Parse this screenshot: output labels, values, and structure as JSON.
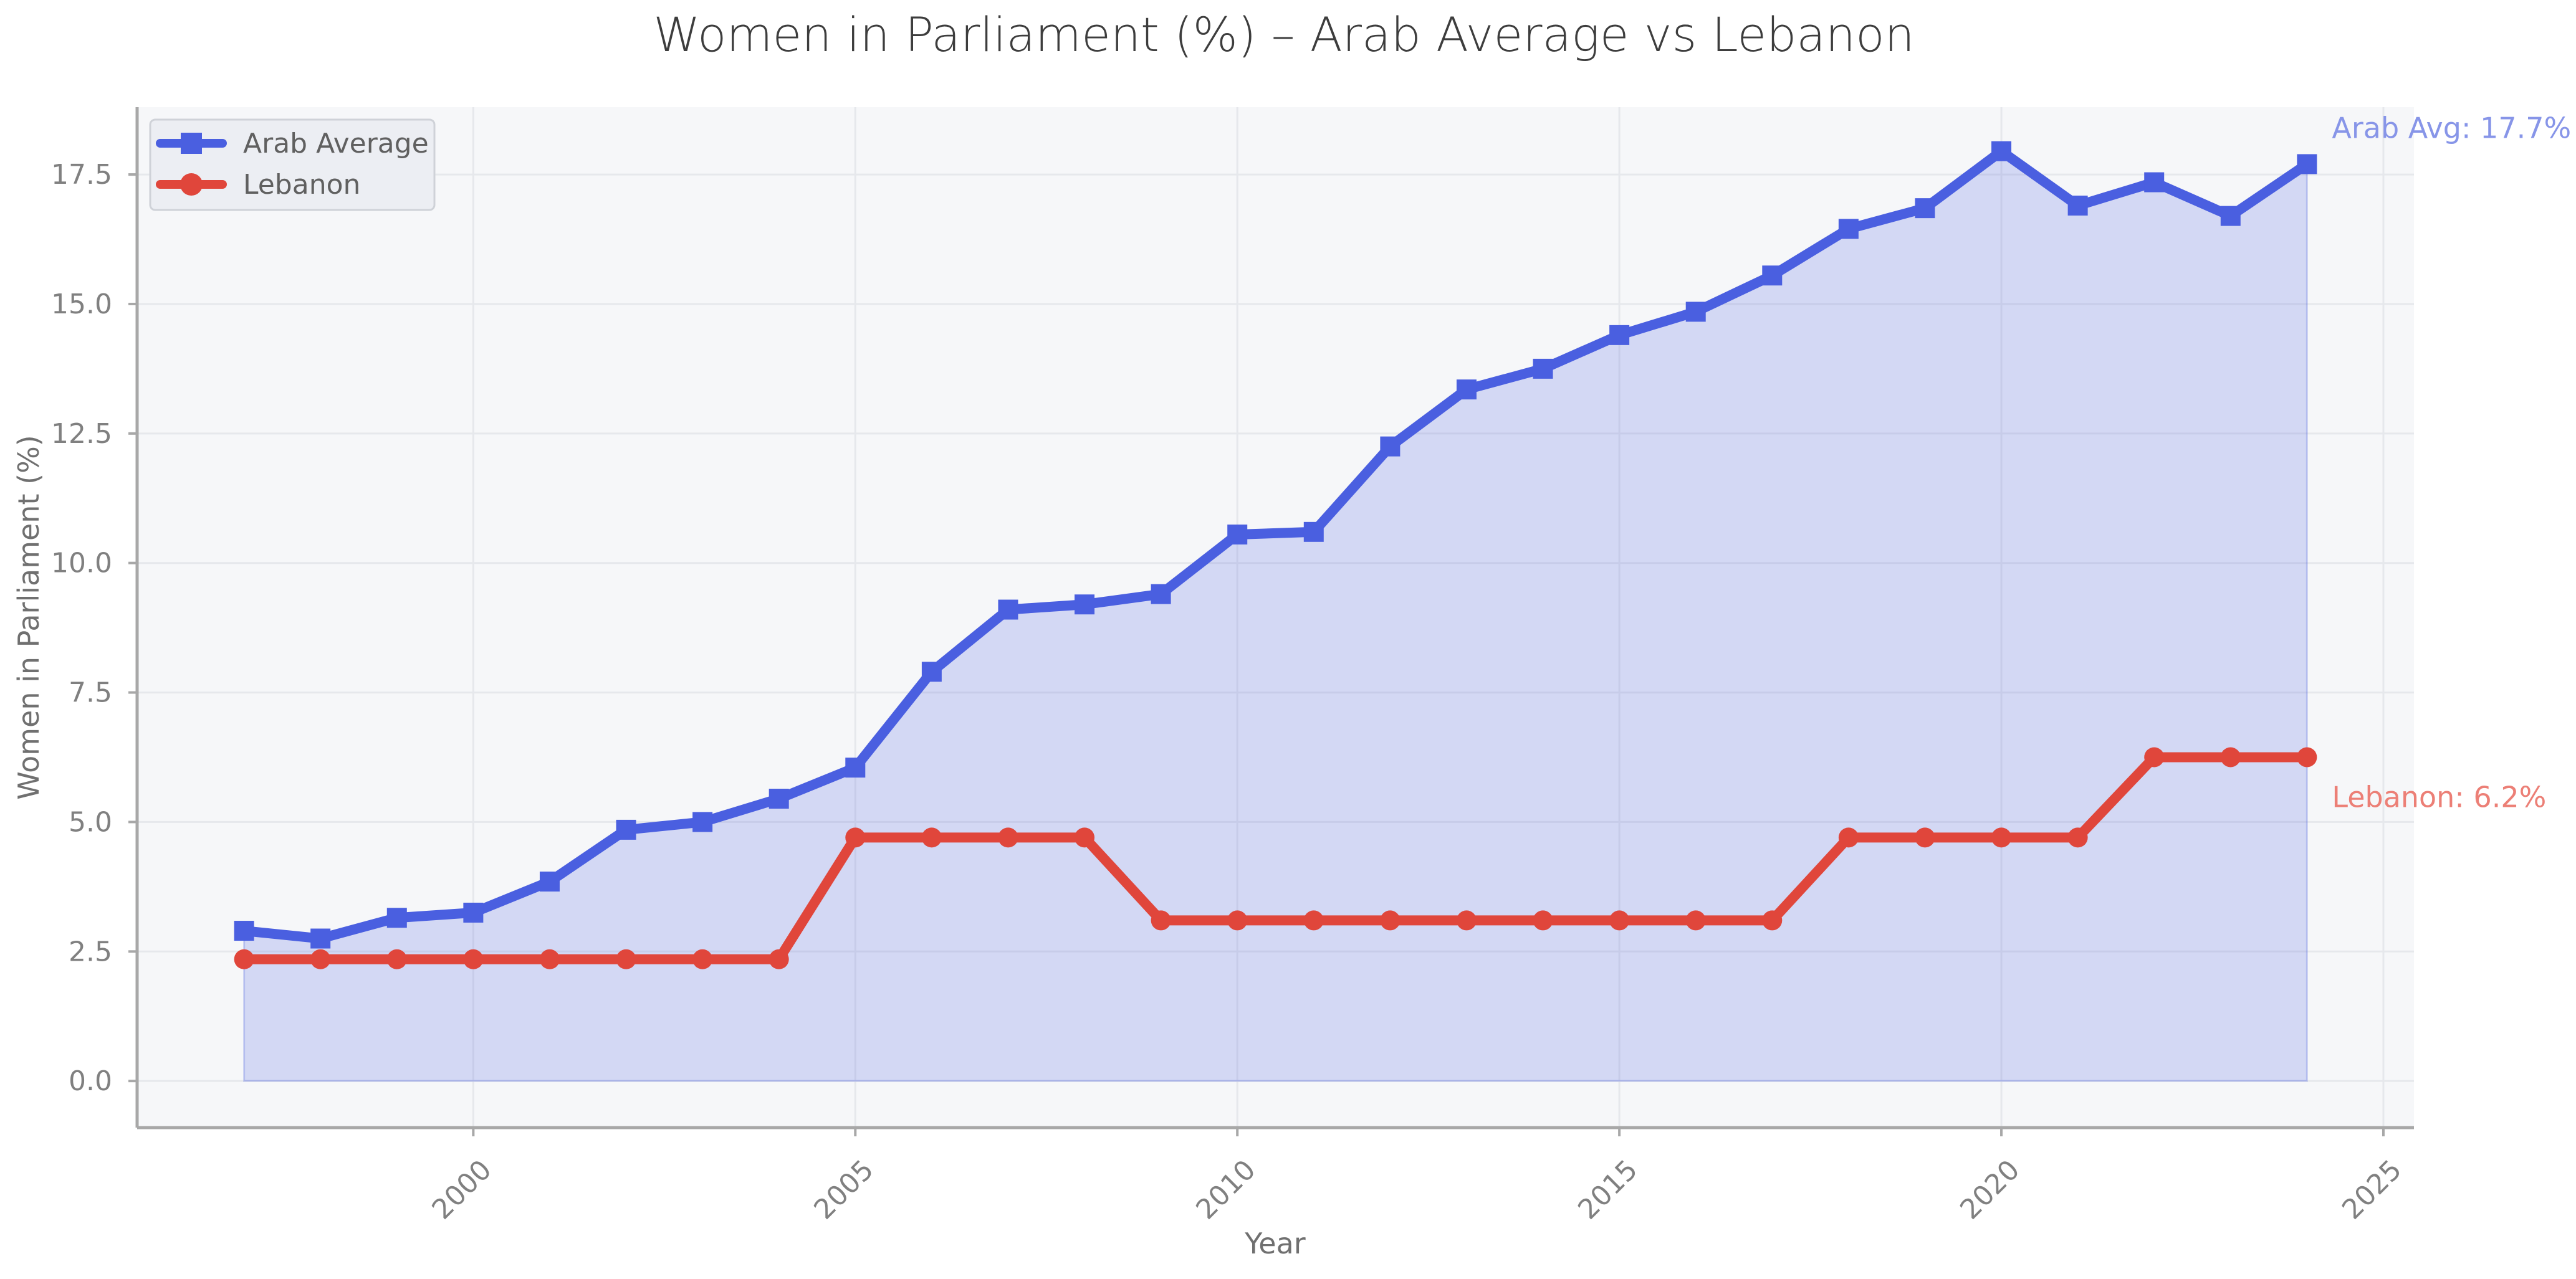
{
  "chart_data": {
    "type": "line",
    "title": "Women in Parliament (%) – Arab Average vs Lebanon",
    "xlabel": "Year",
    "ylabel": "Women in Parliament (%)",
    "xlim": [
      1995.6,
      2025.4
    ],
    "ylim": [
      -0.9,
      18.8
    ],
    "xticks": [
      2000,
      2005,
      2010,
      2015,
      2020,
      2025
    ],
    "yticks": [
      "0.0",
      "2.5",
      "5.0",
      "7.5",
      "10.0",
      "12.5",
      "15.0",
      "17.5"
    ],
    "grid": true,
    "legend_position": "top-left",
    "x": [
      1997,
      1998,
      1999,
      2000,
      2001,
      2002,
      2003,
      2004,
      2005,
      2006,
      2007,
      2008,
      2009,
      2010,
      2011,
      2012,
      2013,
      2014,
      2015,
      2016,
      2017,
      2018,
      2019,
      2020,
      2021,
      2022,
      2023,
      2024
    ],
    "series": [
      {
        "name": "Arab Average",
        "color": "#4a5fe0",
        "marker": "square",
        "fill": true,
        "values": [
          2.9,
          2.75,
          3.15,
          3.25,
          3.85,
          4.85,
          5.0,
          5.45,
          6.05,
          7.9,
          9.1,
          9.2,
          9.4,
          10.55,
          10.6,
          12.25,
          13.35,
          13.75,
          14.4,
          14.85,
          15.55,
          16.45,
          16.85,
          17.95,
          16.9,
          17.35,
          16.7,
          17.7
        ]
      },
      {
        "name": "Lebanon",
        "color": "#e0463b",
        "marker": "circle",
        "fill": false,
        "values": [
          2.35,
          2.35,
          2.35,
          2.35,
          2.35,
          2.35,
          2.35,
          2.35,
          4.7,
          4.7,
          4.7,
          4.7,
          3.1,
          3.1,
          3.1,
          3.1,
          3.1,
          3.1,
          3.1,
          3.1,
          3.1,
          4.7,
          4.7,
          4.7,
          4.7,
          6.25,
          6.25,
          6.25
        ]
      }
    ],
    "annotations": [
      {
        "text": "Arab Avg: 17.7%",
        "color": "#8795e8"
      },
      {
        "text": "Lebanon: 6.2%",
        "color": "#ec7f76"
      }
    ]
  }
}
